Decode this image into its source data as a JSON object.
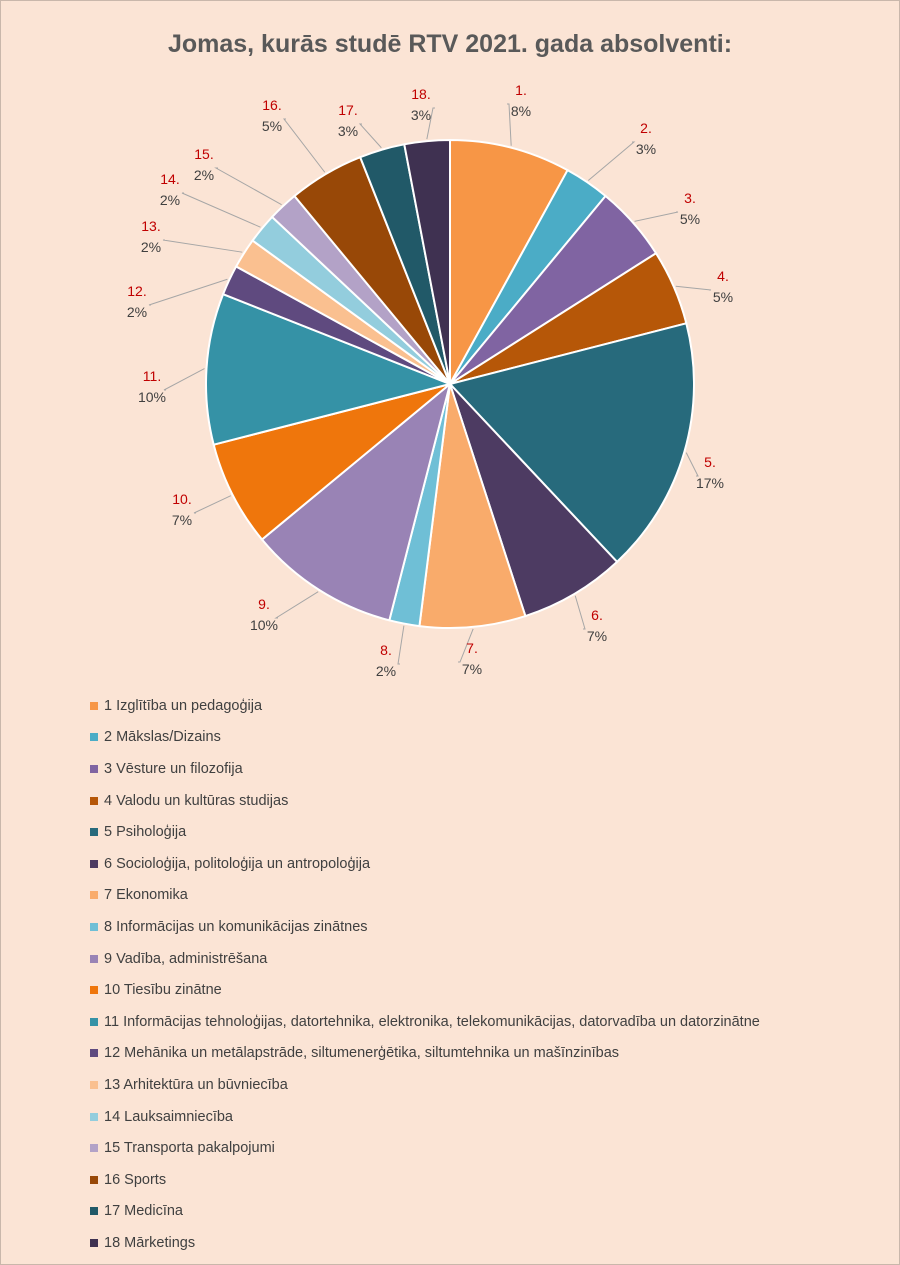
{
  "chart_data": {
    "type": "pie",
    "title": "Jomas, kurās studē RTV 2021. gada absolventi:",
    "slices": [
      {
        "num": "1.",
        "value": 8,
        "label": "8%",
        "legend": "1 Izglītība un pedagoģija",
        "color": "#f79646"
      },
      {
        "num": "2.",
        "value": 3,
        "label": "3%",
        "legend": "2 Mākslas/Dizains",
        "color": "#4bacc6"
      },
      {
        "num": "3.",
        "value": 5,
        "label": "5%",
        "legend": "3 Vēsture un filozofija",
        "color": "#8064a2"
      },
      {
        "num": "4.",
        "value": 5,
        "label": "5%",
        "legend": "4 Valodu un kultūras studijas",
        "color": "#b65708"
      },
      {
        "num": "5.",
        "value": 17,
        "label": "17%",
        "legend": "5 Psiholoģija",
        "color": "#276a7c"
      },
      {
        "num": "6.",
        "value": 7,
        "label": "7%",
        "legend": "6 Socioloģija, politoloģija un antropoloģija",
        "color": "#4d3b62"
      },
      {
        "num": "7.",
        "value": 7,
        "label": "7%",
        "legend": "7 Ekonomika",
        "color": "#f9ab6b"
      },
      {
        "num": "8.",
        "value": 2,
        "label": "2%",
        "legend": "8 Informācijas un komunikācijas zinātnes",
        "color": "#6fbfd6"
      },
      {
        "num": "9.",
        "value": 10,
        "label": "10%",
        "legend": "9 Vadība, administrēšana",
        "color": "#9983b5"
      },
      {
        "num": "10.",
        "value": 7,
        "label": "7%",
        "legend": "10 Tiesību zinātne",
        "color": "#ef760c"
      },
      {
        "num": "11.",
        "value": 10,
        "label": "10%",
        "legend": "11 Informācijas tehnoloģijas, datortehnika, elektronika, telekomunikācijas, datorvadība un datorzinātne",
        "color": "#3592a6"
      },
      {
        "num": "12.",
        "value": 2,
        "label": "2%",
        "legend": "12 Mehānika un metālapstrāde, siltumenerģētika, siltumtehnika un mašīnzinības",
        "color": "#5f4a7f"
      },
      {
        "num": "13.",
        "value": 2,
        "label": "2%",
        "legend": "13 Arhitektūra un būvniecība",
        "color": "#fac090"
      },
      {
        "num": "14.",
        "value": 2,
        "label": "2%",
        "legend": "14 Lauksaimniecība",
        "color": "#93cddd"
      },
      {
        "num": "15.",
        "value": 2,
        "label": "2%",
        "legend": "15 Transporta pakalpojumi",
        "color": "#b3a2c7"
      },
      {
        "num": "16.",
        "value": 5,
        "label": "5%",
        "legend": "16 Sports",
        "color": "#984807"
      },
      {
        "num": "17.",
        "value": 3,
        "label": "3%",
        "legend": "17 Medicīna",
        "color": "#215968"
      },
      {
        "num": "18.",
        "value": 3,
        "label": "3%",
        "legend": "18 Mārketings",
        "color": "#3f3151"
      }
    ],
    "legend_position": "bottom"
  }
}
